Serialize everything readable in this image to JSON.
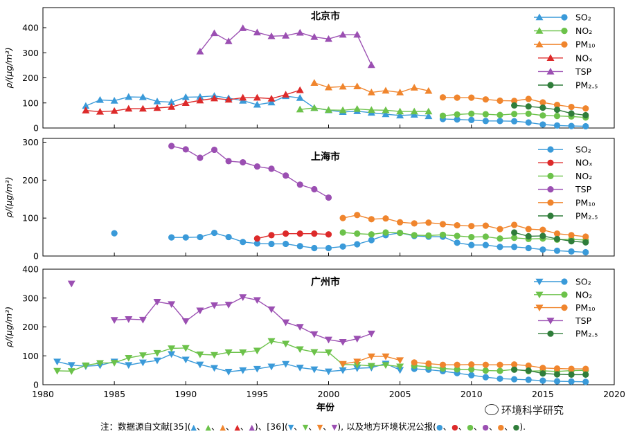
{
  "colors": {
    "SO2": "#3a9ad9",
    "NOx": "#dd2a2a",
    "NO2": "#6cc24a",
    "TSP": "#9b4fb2",
    "PM10": "#f0852d",
    "PM25": "#2f7d3a"
  },
  "shared_x_axis": {
    "label": "年份",
    "ticks": [
      "1980",
      "1985",
      "1990",
      "1995",
      "2000",
      "2005",
      "2010",
      "2015",
      "2020"
    ],
    "xlim": [
      1980,
      2020
    ]
  },
  "ylabel": "ρ/(μg/m³)",
  "chart_data": [
    {
      "type": "line",
      "title": "北京市",
      "ylim": [
        0,
        480
      ],
      "yticks": [
        "0",
        "100",
        "200",
        "300",
        "400"
      ],
      "legend": [
        {
          "name": "SO₂",
          "style": "tri-circle",
          "series": "SO2"
        },
        {
          "name": "NO₂",
          "style": "tri-circle",
          "series": "NO2"
        },
        {
          "name": "PM₁₀",
          "style": "tri-circle",
          "series": "PM10"
        },
        {
          "name": "NOₓ",
          "style": "tri",
          "series": "NOx"
        },
        {
          "name": "TSP",
          "style": "tri",
          "series": "TSP"
        },
        {
          "name": "PM₂.₅",
          "style": "circle",
          "series": "PM25"
        }
      ],
      "series": [
        {
          "name": "SO2",
          "marker": "tri",
          "x": [
            1983,
            1984,
            1985,
            1986,
            1987,
            1988,
            1989,
            1990,
            1991,
            1992,
            1993,
            1994,
            1995,
            1996,
            1997,
            1998,
            1999,
            2000,
            2001,
            2002,
            2003,
            2004,
            2005,
            2006,
            2007
          ],
          "y": [
            88,
            112,
            109,
            124,
            123,
            106,
            103,
            123,
            124,
            128,
            119,
            109,
            93,
            102,
            127,
            120,
            80,
            71,
            64,
            67,
            61,
            55,
            50,
            53,
            47
          ]
        },
        {
          "name": "NO2",
          "marker": "tri",
          "x": [
            1998,
            1999,
            2000,
            2001,
            2002,
            2003,
            2004,
            2005,
            2006,
            2007
          ],
          "y": [
            74,
            80,
            72,
            71,
            76,
            72,
            71,
            66,
            66,
            66
          ]
        },
        {
          "name": "PM10",
          "marker": "tri",
          "x": [
            1999,
            2000,
            2001,
            2002,
            2003,
            2004,
            2005,
            2006,
            2007
          ],
          "y": [
            180,
            162,
            165,
            166,
            142,
            149,
            142,
            161,
            148
          ]
        },
        {
          "name": "NOx",
          "marker": "tri",
          "x": [
            1983,
            1984,
            1985,
            1986,
            1987,
            1988,
            1989,
            1990,
            1991,
            1992,
            1993,
            1994,
            1995,
            1996,
            1997,
            1998
          ],
          "y": [
            70,
            65,
            68,
            77,
            77,
            80,
            84,
            100,
            110,
            118,
            113,
            121,
            121,
            117,
            133,
            151
          ]
        },
        {
          "name": "TSP",
          "marker": "tri",
          "x": [
            1991,
            1992,
            1993,
            1994,
            1995,
            1996,
            1997,
            1998,
            1999,
            2000,
            2001,
            2002,
            2003
          ],
          "y": [
            305,
            378,
            346,
            398,
            381,
            366,
            368,
            380,
            363,
            355,
            372,
            372,
            251
          ]
        },
        {
          "name": "SO2",
          "marker": "circle",
          "x": [
            2008,
            2009,
            2010,
            2011,
            2012,
            2013,
            2014,
            2015,
            2016,
            2017,
            2018
          ],
          "y": [
            36,
            34,
            32,
            28,
            28,
            27,
            22,
            14,
            10,
            8,
            7
          ]
        },
        {
          "name": "NO2",
          "marker": "circle",
          "x": [
            2008,
            2009,
            2010,
            2011,
            2012,
            2013,
            2014,
            2015,
            2016,
            2017,
            2018
          ],
          "y": [
            49,
            54,
            57,
            55,
            52,
            56,
            57,
            50,
            48,
            46,
            42
          ]
        },
        {
          "name": "PM10",
          "marker": "circle",
          "x": [
            2008,
            2009,
            2010,
            2011,
            2012,
            2013,
            2014,
            2015,
            2016,
            2017,
            2018
          ],
          "y": [
            122,
            121,
            121,
            114,
            109,
            108,
            116,
            102,
            92,
            84,
            78
          ]
        },
        {
          "name": "PM25",
          "marker": "circle",
          "x": [
            2013,
            2014,
            2015,
            2016,
            2017,
            2018
          ],
          "y": [
            90,
            86,
            81,
            73,
            58,
            51
          ]
        }
      ]
    },
    {
      "type": "line",
      "title": "上海市",
      "ylim": [
        0,
        310
      ],
      "yticks": [
        "0",
        "100",
        "200",
        "300"
      ],
      "legend": [
        {
          "name": "SO₂",
          "style": "circle",
          "series": "SO2"
        },
        {
          "name": "NOₓ",
          "style": "circle",
          "series": "NOx"
        },
        {
          "name": "NO₂",
          "style": "circle",
          "series": "NO2"
        },
        {
          "name": "TSP",
          "style": "circle",
          "series": "TSP"
        },
        {
          "name": "PM₁₀",
          "style": "circle",
          "series": "PM10"
        },
        {
          "name": "PM₂.₅",
          "style": "circle",
          "series": "PM25"
        }
      ],
      "series": [
        {
          "name": "SO2",
          "marker": "circle",
          "x": [
            1985
          ],
          "y": [
            60
          ]
        },
        {
          "name": "SO2",
          "marker": "circle",
          "x": [
            1989,
            1990,
            1991,
            1992,
            1993,
            1994,
            1995,
            1996,
            1997,
            1998,
            1999,
            2000,
            2001,
            2002,
            2003,
            2004,
            2005,
            2006,
            2007,
            2008,
            2009,
            2010,
            2011,
            2012,
            2013,
            2014,
            2015,
            2016,
            2017,
            2018
          ],
          "y": [
            49,
            49,
            50,
            61,
            50,
            37,
            33,
            32,
            32,
            26,
            21,
            21,
            25,
            31,
            42,
            55,
            61,
            53,
            51,
            51,
            35,
            29,
            29,
            24,
            24,
            21,
            17,
            14,
            12,
            10
          ]
        },
        {
          "name": "NOx",
          "marker": "circle",
          "x": [
            1995,
            1996,
            1997,
            1998,
            1999,
            2000
          ],
          "y": [
            46,
            55,
            59,
            59,
            59,
            57
          ]
        },
        {
          "name": "NO2",
          "marker": "circle",
          "x": [
            2001,
            2002,
            2003,
            2004,
            2005,
            2006,
            2007,
            2008,
            2009,
            2010,
            2011,
            2012,
            2013,
            2014,
            2015,
            2016,
            2017,
            2018
          ],
          "y": [
            62,
            59,
            57,
            62,
            61,
            55,
            54,
            56,
            53,
            50,
            51,
            46,
            48,
            45,
            46,
            43,
            44,
            42
          ]
        },
        {
          "name": "TSP",
          "marker": "circle",
          "x": [
            1989,
            1990,
            1991,
            1992,
            1993,
            1994,
            1995,
            1996,
            1997,
            1998,
            1999,
            2000
          ],
          "y": [
            290,
            281,
            259,
            280,
            250,
            247,
            236,
            230,
            212,
            188,
            176,
            154
          ]
        },
        {
          "name": "PM10",
          "marker": "circle",
          "x": [
            2001,
            2002,
            2003,
            2004,
            2005,
            2006,
            2007,
            2008,
            2009,
            2010,
            2011,
            2012,
            2013,
            2014,
            2015,
            2016,
            2017,
            2018
          ],
          "y": [
            100,
            108,
            97,
            99,
            89,
            86,
            88,
            84,
            81,
            79,
            80,
            71,
            82,
            71,
            69,
            59,
            55,
            51
          ]
        },
        {
          "name": "PM25",
          "marker": "circle",
          "x": [
            2013,
            2014,
            2015,
            2016,
            2017,
            2018
          ],
          "y": [
            62,
            52,
            53,
            45,
            39,
            36
          ]
        }
      ]
    },
    {
      "type": "line",
      "title": "广州市",
      "ylim": [
        0,
        400
      ],
      "yticks": [
        "0",
        "100",
        "200",
        "300",
        "400"
      ],
      "legend": [
        {
          "name": "SO₂",
          "style": "itri-circle",
          "series": "SO2"
        },
        {
          "name": "NO₂",
          "style": "itri-circle",
          "series": "NO2"
        },
        {
          "name": "PM₁₀",
          "style": "itri-circle",
          "series": "PM10"
        },
        {
          "name": "TSP",
          "style": "itri",
          "series": "TSP"
        },
        {
          "name": "PM₂.₅",
          "style": "circle",
          "series": "PM25"
        }
      ],
      "series": [
        {
          "name": "SO2",
          "marker": "itri",
          "x": [
            1981,
            1982,
            1983,
            1984,
            1985,
            1986,
            1987,
            1988,
            1989,
            1990,
            1991,
            1992,
            1993,
            1994,
            1995,
            1996,
            1997,
            1998,
            1999,
            2000,
            2001,
            2002,
            2003,
            2004,
            2005
          ],
          "y": [
            80,
            68,
            64,
            67,
            80,
            68,
            77,
            84,
            106,
            87,
            70,
            58,
            45,
            50,
            55,
            63,
            72,
            59,
            53,
            46,
            50,
            57,
            59,
            73,
            51
          ]
        },
        {
          "name": "NO2",
          "marker": "itri",
          "x": [
            1981,
            1982,
            1983,
            1984,
            1985,
            1986,
            1987,
            1988,
            1989,
            1990,
            1991,
            1992,
            1993,
            1994,
            1995,
            1996,
            1997,
            1998,
            1999,
            2000,
            2001,
            2002,
            2003,
            2004,
            2005
          ],
          "y": [
            48,
            47,
            67,
            75,
            76,
            93,
            102,
            110,
            126,
            127,
            105,
            103,
            112,
            112,
            118,
            151,
            142,
            123,
            113,
            112,
            70,
            69,
            65,
            68,
            63
          ]
        },
        {
          "name": "PM10",
          "marker": "itri",
          "x": [
            2001,
            2002,
            2003,
            2004,
            2005
          ],
          "y": [
            72,
            80,
            98,
            98,
            85
          ]
        },
        {
          "name": "TSP",
          "marker": "itri",
          "x": [
            1982
          ],
          "y": [
            350
          ]
        },
        {
          "name": "TSP",
          "marker": "itri",
          "x": [
            1985,
            1986,
            1987,
            1988,
            1989,
            1990,
            1991,
            1992,
            1993,
            1994,
            1995,
            1996,
            1997,
            1998,
            1999,
            2000,
            2001,
            2002,
            2003
          ],
          "y": [
            224,
            227,
            225,
            287,
            279,
            220,
            257,
            275,
            277,
            303,
            293,
            261,
            216,
            200,
            175,
            156,
            148,
            159,
            177
          ]
        },
        {
          "name": "SO2",
          "marker": "circle",
          "x": [
            2006,
            2007,
            2008,
            2009,
            2010,
            2011,
            2012,
            2013,
            2014,
            2015,
            2016,
            2017,
            2018
          ],
          "y": [
            55,
            52,
            47,
            40,
            33,
            26,
            21,
            19,
            17,
            14,
            12,
            11,
            10
          ]
        },
        {
          "name": "NO2",
          "marker": "circle",
          "x": [
            2006,
            2007,
            2008,
            2009,
            2010,
            2011,
            2012,
            2013,
            2014,
            2015,
            2016,
            2017,
            2018
          ],
          "y": [
            66,
            62,
            56,
            53,
            53,
            49,
            48,
            53,
            47,
            48,
            46,
            49,
            50
          ]
        },
        {
          "name": "PM10",
          "marker": "circle",
          "x": [
            2006,
            2007,
            2008,
            2009,
            2010,
            2011,
            2012,
            2013,
            2014,
            2015,
            2016,
            2017,
            2018
          ],
          "y": [
            77,
            73,
            69,
            69,
            70,
            69,
            69,
            70,
            66,
            58,
            56,
            55,
            55
          ]
        },
        {
          "name": "PM25",
          "marker": "circle",
          "x": [
            2013,
            2014,
            2015,
            2016,
            2017,
            2018
          ],
          "y": [
            52,
            49,
            39,
            36,
            35,
            35
          ]
        }
      ]
    }
  ],
  "note": {
    "prefix": "注：数据源自文献[35](",
    "sep1": ")、[36](",
    "sep2": "), 以及地方环境状况公报(",
    "suffix": ").",
    "ref35": [
      "SO2",
      "NO2",
      "PM10",
      "NOx",
      "TSP"
    ],
    "ref36": [
      "SO2",
      "NO2",
      "PM10",
      "TSP"
    ],
    "bulletin": [
      "SO2",
      "NOx",
      "NO2",
      "TSP",
      "PM10",
      "PM25"
    ]
  },
  "watermark": "环境科学研究"
}
